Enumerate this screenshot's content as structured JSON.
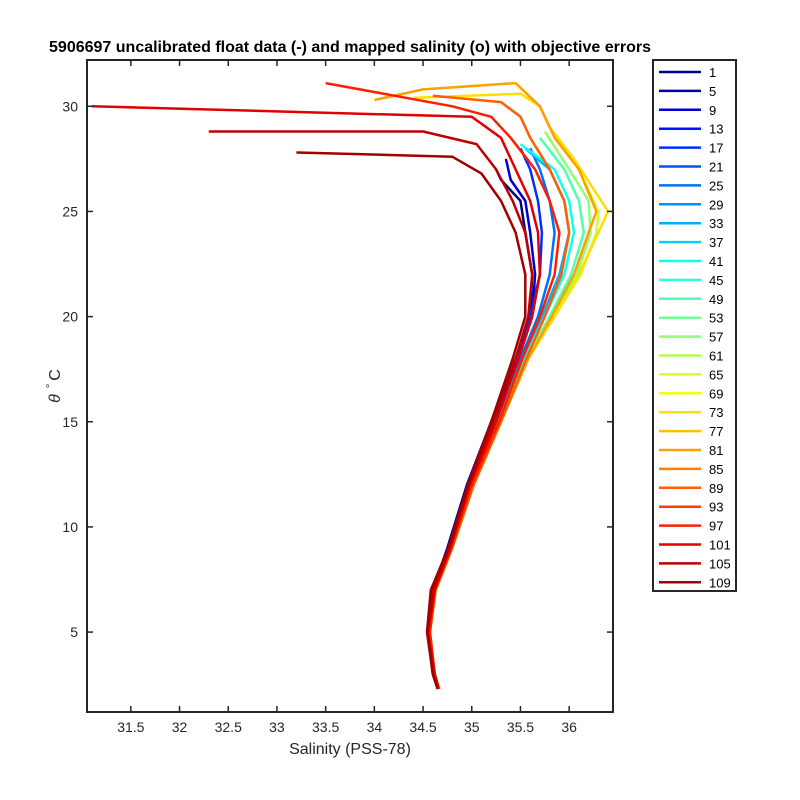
{
  "chart_data": {
    "type": "line",
    "title": "5906697 uncalibrated float data (-) and mapped salinity (o) with objective errors",
    "xlabel": "Salinity (PSS-78)",
    "ylabel_symbol": "θ",
    "ylabel_degree": "°",
    "ylabel_unit": "C",
    "xlim": [
      31.05,
      36.45
    ],
    "ylim": [
      1.2,
      32.2
    ],
    "xticks": [
      31.5,
      32,
      32.5,
      33,
      33.5,
      34,
      34.5,
      35,
      35.5,
      36
    ],
    "yticks": [
      5,
      10,
      15,
      20,
      25,
      30
    ],
    "grid": false,
    "legend_position": "outside-right",
    "legend": [
      {
        "label": "1",
        "color": "#00008f"
      },
      {
        "label": "5",
        "color": "#0000af"
      },
      {
        "label": "9",
        "color": "#0000cf"
      },
      {
        "label": "13",
        "color": "#0010ff"
      },
      {
        "label": "17",
        "color": "#0030ff"
      },
      {
        "label": "21",
        "color": "#0050ff"
      },
      {
        "label": "25",
        "color": "#0070ff"
      },
      {
        "label": "29",
        "color": "#0090ff"
      },
      {
        "label": "33",
        "color": "#00b0ff"
      },
      {
        "label": "37",
        "color": "#00d0ff"
      },
      {
        "label": "41",
        "color": "#10ffef"
      },
      {
        "label": "45",
        "color": "#30ffcf"
      },
      {
        "label": "49",
        "color": "#50ffaf"
      },
      {
        "label": "53",
        "color": "#70ff8f"
      },
      {
        "label": "57",
        "color": "#90ff70"
      },
      {
        "label": "61",
        "color": "#b0ff50"
      },
      {
        "label": "65",
        "color": "#d0ff30"
      },
      {
        "label": "69",
        "color": "#f0ff10"
      },
      {
        "label": "73",
        "color": "#ffdf00"
      },
      {
        "label": "77",
        "color": "#ffbf00"
      },
      {
        "label": "81",
        "color": "#ff9f00"
      },
      {
        "label": "85",
        "color": "#ff7f00"
      },
      {
        "label": "89",
        "color": "#ff5f00"
      },
      {
        "label": "93",
        "color": "#ff3f00"
      },
      {
        "label": "97",
        "color": "#ff1f00"
      },
      {
        "label": "101",
        "color": "#df0000"
      },
      {
        "label": "105",
        "color": "#bf0000"
      },
      {
        "label": "109",
        "color": "#9f0000"
      }
    ],
    "series": [
      {
        "color": "#00008f",
        "points": [
          [
            34.65,
            2.3
          ],
          [
            34.62,
            3
          ],
          [
            34.55,
            5
          ],
          [
            34.6,
            7
          ],
          [
            34.75,
            9
          ],
          [
            34.95,
            12
          ],
          [
            35.2,
            15
          ],
          [
            35.45,
            18
          ],
          [
            35.6,
            20
          ],
          [
            35.62,
            22
          ],
          [
            35.55,
            24
          ],
          [
            35.5,
            25.5
          ],
          [
            35.3,
            26.5
          ],
          [
            35.25,
            27
          ]
        ]
      },
      {
        "color": "#0000cf",
        "points": [
          [
            34.65,
            2.3
          ],
          [
            34.62,
            3
          ],
          [
            34.56,
            5
          ],
          [
            34.62,
            7
          ],
          [
            34.77,
            9
          ],
          [
            34.97,
            12
          ],
          [
            35.22,
            15
          ],
          [
            35.48,
            18
          ],
          [
            35.62,
            20
          ],
          [
            35.65,
            22
          ],
          [
            35.6,
            24
          ],
          [
            35.55,
            25.5
          ],
          [
            35.4,
            26.5
          ],
          [
            35.35,
            27.5
          ]
        ]
      },
      {
        "color": "#0030ff",
        "points": [
          [
            34.65,
            2.3
          ],
          [
            34.6,
            3
          ],
          [
            34.55,
            5
          ],
          [
            34.6,
            7
          ],
          [
            34.76,
            9
          ],
          [
            34.96,
            12
          ],
          [
            35.2,
            15
          ],
          [
            35.45,
            18
          ],
          [
            35.6,
            20
          ],
          [
            35.7,
            22
          ],
          [
            35.72,
            24
          ],
          [
            35.68,
            25.5
          ],
          [
            35.6,
            27
          ],
          [
            35.5,
            28
          ]
        ]
      },
      {
        "color": "#0070ff",
        "points": [
          [
            34.66,
            2.3
          ],
          [
            34.62,
            3
          ],
          [
            34.56,
            5
          ],
          [
            34.61,
            7
          ],
          [
            34.78,
            9
          ],
          [
            34.98,
            12
          ],
          [
            35.25,
            15
          ],
          [
            35.5,
            18
          ],
          [
            35.68,
            20
          ],
          [
            35.8,
            22
          ],
          [
            35.85,
            24
          ],
          [
            35.8,
            25.5
          ],
          [
            35.7,
            27
          ],
          [
            35.6,
            28
          ]
        ]
      },
      {
        "color": "#00b0ff",
        "points": [
          [
            34.66,
            2.3
          ],
          [
            34.62,
            3
          ],
          [
            34.56,
            5
          ],
          [
            34.62,
            7
          ],
          [
            34.78,
            9
          ],
          [
            34.99,
            12
          ],
          [
            35.26,
            15
          ],
          [
            35.52,
            18
          ],
          [
            35.72,
            20
          ],
          [
            35.9,
            22
          ],
          [
            36.0,
            24
          ],
          [
            35.95,
            25.5
          ],
          [
            35.8,
            27
          ],
          [
            35.55,
            28
          ]
        ]
      },
      {
        "color": "#10ffef",
        "points": [
          [
            34.66,
            2.3
          ],
          [
            34.62,
            3
          ],
          [
            34.56,
            5
          ],
          [
            34.62,
            7
          ],
          [
            34.78,
            9
          ],
          [
            35.0,
            12
          ],
          [
            35.27,
            15
          ],
          [
            35.54,
            18
          ],
          [
            35.75,
            20
          ],
          [
            35.95,
            22
          ],
          [
            36.05,
            24
          ],
          [
            36.0,
            25.5
          ],
          [
            35.85,
            27
          ],
          [
            35.5,
            28.2
          ]
        ]
      },
      {
        "color": "#50ffaf",
        "points": [
          [
            34.66,
            2.3
          ],
          [
            34.62,
            3
          ],
          [
            34.57,
            5
          ],
          [
            34.62,
            7
          ],
          [
            34.79,
            9
          ],
          [
            35.0,
            12
          ],
          [
            35.28,
            15
          ],
          [
            35.56,
            18
          ],
          [
            35.8,
            20
          ],
          [
            36.02,
            22
          ],
          [
            36.15,
            24
          ],
          [
            36.1,
            25.5
          ],
          [
            35.95,
            27
          ],
          [
            35.7,
            28.5
          ]
        ]
      },
      {
        "color": "#90ff70",
        "points": [
          [
            34.66,
            2.3
          ],
          [
            34.62,
            3
          ],
          [
            34.57,
            5
          ],
          [
            34.63,
            7
          ],
          [
            34.79,
            9
          ],
          [
            35.01,
            12
          ],
          [
            35.28,
            15
          ],
          [
            35.57,
            18
          ],
          [
            35.82,
            20
          ],
          [
            36.08,
            22
          ],
          [
            36.22,
            24
          ],
          [
            36.2,
            25.5
          ],
          [
            36.0,
            27
          ],
          [
            35.75,
            28.8
          ]
        ]
      },
      {
        "color": "#d0ff30",
        "points": [
          [
            34.66,
            2.3
          ],
          [
            34.62,
            3
          ],
          [
            34.57,
            5
          ],
          [
            34.63,
            7
          ],
          [
            34.8,
            9
          ],
          [
            35.02,
            12
          ],
          [
            35.3,
            15
          ],
          [
            35.58,
            18
          ],
          [
            35.85,
            20
          ],
          [
            36.12,
            22
          ],
          [
            36.28,
            24
          ],
          [
            36.3,
            25
          ],
          [
            36.1,
            27
          ],
          [
            35.8,
            29
          ]
        ]
      },
      {
        "color": "#ffdf00",
        "points": [
          [
            34.67,
            2.3
          ],
          [
            34.62,
            3
          ],
          [
            34.57,
            5
          ],
          [
            34.63,
            7
          ],
          [
            34.8,
            9
          ],
          [
            35.02,
            12
          ],
          [
            35.3,
            15
          ],
          [
            35.58,
            18
          ],
          [
            35.85,
            20
          ],
          [
            36.1,
            22
          ],
          [
            36.3,
            24
          ],
          [
            36.4,
            25
          ],
          [
            36.05,
            27.5
          ],
          [
            35.8,
            29
          ],
          [
            35.7,
            30
          ],
          [
            35.5,
            30.6
          ],
          [
            34.4,
            30.4
          ]
        ]
      },
      {
        "color": "#ff9f00",
        "points": [
          [
            34.67,
            2.3
          ],
          [
            34.62,
            3
          ],
          [
            34.57,
            5
          ],
          [
            34.63,
            7
          ],
          [
            34.8,
            9
          ],
          [
            35.02,
            12
          ],
          [
            35.3,
            15
          ],
          [
            35.58,
            18
          ],
          [
            35.82,
            20
          ],
          [
            36.05,
            22
          ],
          [
            36.2,
            24
          ],
          [
            36.28,
            25
          ],
          [
            36.1,
            27
          ],
          [
            35.85,
            28.5
          ],
          [
            35.7,
            30
          ],
          [
            35.45,
            31.1
          ],
          [
            34.5,
            30.8
          ],
          [
            34.0,
            30.3
          ]
        ]
      },
      {
        "color": "#ff5f00",
        "points": [
          [
            34.66,
            2.3
          ],
          [
            34.62,
            3
          ],
          [
            34.57,
            5
          ],
          [
            34.63,
            7
          ],
          [
            34.8,
            9
          ],
          [
            35.02,
            12
          ],
          [
            35.3,
            15
          ],
          [
            35.56,
            18
          ],
          [
            35.75,
            20
          ],
          [
            35.92,
            22
          ],
          [
            36.0,
            24
          ],
          [
            35.95,
            25.5
          ],
          [
            35.8,
            27
          ],
          [
            35.6,
            28.5
          ],
          [
            35.5,
            29.5
          ],
          [
            35.3,
            30.2
          ],
          [
            34.6,
            30.5
          ]
        ]
      },
      {
        "color": "#ff1f00",
        "points": [
          [
            34.66,
            2.3
          ],
          [
            34.62,
            3
          ],
          [
            34.57,
            5
          ],
          [
            34.62,
            7
          ],
          [
            34.79,
            9
          ],
          [
            35.0,
            12
          ],
          [
            35.28,
            15
          ],
          [
            35.52,
            18
          ],
          [
            35.7,
            20
          ],
          [
            35.85,
            22
          ],
          [
            35.9,
            24
          ],
          [
            35.8,
            25.5
          ],
          [
            35.65,
            27
          ],
          [
            35.4,
            28.5
          ],
          [
            35.2,
            29.5
          ],
          [
            34.8,
            30
          ],
          [
            33.5,
            31.1
          ]
        ]
      },
      {
        "color": "#df0000",
        "points": [
          [
            34.66,
            2.3
          ],
          [
            34.62,
            3
          ],
          [
            34.55,
            5
          ],
          [
            34.62,
            7
          ],
          [
            34.78,
            9
          ],
          [
            34.98,
            12
          ],
          [
            35.25,
            15
          ],
          [
            35.48,
            18
          ],
          [
            35.62,
            20
          ],
          [
            35.7,
            22
          ],
          [
            35.68,
            24
          ],
          [
            35.6,
            25.5
          ],
          [
            35.45,
            27
          ],
          [
            35.3,
            28.5
          ],
          [
            35.0,
            29.5
          ],
          [
            31.1,
            30
          ]
        ]
      },
      {
        "color": "#bf0000",
        "points": [
          [
            34.65,
            2.3
          ],
          [
            34.6,
            3
          ],
          [
            34.55,
            5
          ],
          [
            34.6,
            7
          ],
          [
            34.77,
            9
          ],
          [
            34.97,
            12
          ],
          [
            35.22,
            15
          ],
          [
            35.45,
            18
          ],
          [
            35.58,
            20
          ],
          [
            35.62,
            22
          ],
          [
            35.55,
            24
          ],
          [
            35.42,
            25.5
          ],
          [
            35.25,
            27
          ],
          [
            35.05,
            28.2
          ],
          [
            34.5,
            28.8
          ],
          [
            32.3,
            28.8
          ]
        ]
      },
      {
        "color": "#9f0000",
        "points": [
          [
            34.65,
            2.3
          ],
          [
            34.6,
            3
          ],
          [
            34.54,
            5
          ],
          [
            34.58,
            7
          ],
          [
            34.76,
            9
          ],
          [
            34.96,
            12
          ],
          [
            35.2,
            15
          ],
          [
            35.42,
            18
          ],
          [
            35.55,
            20
          ],
          [
            35.55,
            22
          ],
          [
            35.45,
            24
          ],
          [
            35.3,
            25.5
          ],
          [
            35.1,
            26.8
          ],
          [
            34.8,
            27.6
          ],
          [
            33.2,
            27.8
          ]
        ]
      }
    ]
  }
}
